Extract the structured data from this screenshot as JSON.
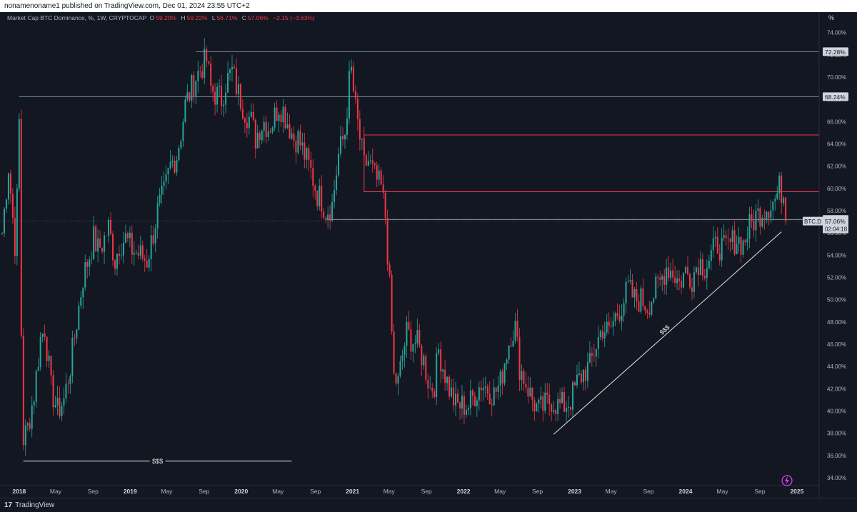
{
  "header": {
    "published_text": "nonamenoname1 published on TradingView.com, Dec 01, 2024 23:55 UTC+2"
  },
  "legend": {
    "symbol_text": "Market Cap BTC Dominance, %, 1W, CRYPTOCAP",
    "open_label": "O",
    "open_value": "59.20%",
    "high_label": "H",
    "high_value": "59.22%",
    "low_label": "L",
    "low_value": "56.71%",
    "close_label": "C",
    "close_value": "57.06%",
    "change_text": "−2.15 (−3.63%)"
  },
  "scale_unit": "%",
  "footer": {
    "logo_mark": "17",
    "brand": "TradingView"
  },
  "colors": {
    "background": "#131722",
    "up": "#26a69a",
    "down": "#f23645",
    "level_line": "#9aa8b4",
    "zone_line": "#f23645",
    "annotation": "#e6e6e6"
  },
  "icons": [
    "tradingview-logo-icon",
    "lightning-icon"
  ],
  "chart_data": {
    "type": "candlestick",
    "timeframe": "1W",
    "ylim": [
      33.3,
      75.0
    ],
    "xlim": [
      "2017-10-30",
      "2025-03-15"
    ],
    "y_ticks": [
      "74.00%",
      "72.00%",
      "70.00%",
      "68.00%",
      "66.00%",
      "64.00%",
      "62.00%",
      "60.00%",
      "58.00%",
      "56.00%",
      "54.00%",
      "52.00%",
      "50.00%",
      "48.00%",
      "46.00%",
      "44.00%",
      "42.00%",
      "40.00%",
      "38.00%",
      "36.00%",
      "34.00%"
    ],
    "x_ticks": [
      {
        "label": "2018",
        "date": "2018-01-01",
        "major": true
      },
      {
        "label": "May",
        "date": "2018-05-01"
      },
      {
        "label": "Sep",
        "date": "2018-09-01"
      },
      {
        "label": "2019",
        "date": "2019-01-01",
        "major": true
      },
      {
        "label": "May",
        "date": "2019-05-01"
      },
      {
        "label": "Sep",
        "date": "2019-09-01"
      },
      {
        "label": "2020",
        "date": "2020-01-01",
        "major": true
      },
      {
        "label": "May",
        "date": "2020-05-01"
      },
      {
        "label": "Sep",
        "date": "2020-09-01"
      },
      {
        "label": "2021",
        "date": "2021-01-01",
        "major": true
      },
      {
        "label": "May",
        "date": "2021-05-01"
      },
      {
        "label": "Sep",
        "date": "2021-09-01"
      },
      {
        "label": "2022",
        "date": "2022-01-01",
        "major": true
      },
      {
        "label": "May",
        "date": "2022-05-01"
      },
      {
        "label": "Sep",
        "date": "2022-09-01"
      },
      {
        "label": "2023",
        "date": "2023-01-01",
        "major": true
      },
      {
        "label": "May",
        "date": "2023-05-01"
      },
      {
        "label": "Sep",
        "date": "2023-09-01"
      },
      {
        "label": "2024",
        "date": "2024-01-01",
        "major": true
      },
      {
        "label": "May",
        "date": "2024-05-01"
      },
      {
        "label": "Sep",
        "date": "2024-09-01"
      },
      {
        "label": "2025",
        "date": "2025-01-01",
        "major": true
      }
    ],
    "price_anchors": [
      [
        "2017-11-06",
        56.0
      ],
      [
        "2017-11-27",
        62.0
      ],
      [
        "2017-12-18",
        55.0
      ],
      [
        "2017-12-25",
        59.0
      ],
      [
        "2018-01-01",
        66.0
      ],
      [
        "2018-01-08",
        47.0
      ],
      [
        "2018-01-15",
        37.5
      ],
      [
        "2018-01-29",
        38.5
      ],
      [
        "2018-02-19",
        41.5
      ],
      [
        "2018-03-12",
        46.5
      ],
      [
        "2018-03-26",
        47.5
      ],
      [
        "2018-04-16",
        42.0
      ],
      [
        "2018-05-07",
        40.0
      ],
      [
        "2018-05-28",
        41.0
      ],
      [
        "2018-06-18",
        44.0
      ],
      [
        "2018-07-09",
        48.0
      ],
      [
        "2018-07-30",
        52.0
      ],
      [
        "2018-08-20",
        54.0
      ],
      [
        "2018-09-03",
        55.5
      ],
      [
        "2018-09-17",
        54.5
      ],
      [
        "2018-10-01",
        55.0
      ],
      [
        "2018-10-22",
        56.5
      ],
      [
        "2018-11-12",
        53.5
      ],
      [
        "2018-11-26",
        55.0
      ],
      [
        "2018-12-17",
        55.5
      ],
      [
        "2019-01-07",
        54.5
      ],
      [
        "2019-02-04",
        54.0
      ],
      [
        "2019-02-25",
        53.5
      ],
      [
        "2019-03-18",
        56.0
      ],
      [
        "2019-04-01",
        58.0
      ],
      [
        "2019-04-22",
        59.5
      ],
      [
        "2019-05-13",
        62.0
      ],
      [
        "2019-06-03",
        63.0
      ],
      [
        "2019-06-17",
        65.0
      ],
      [
        "2019-07-01",
        67.5
      ],
      [
        "2019-07-15",
        68.5
      ],
      [
        "2019-08-05",
        70.0
      ],
      [
        "2019-08-26",
        71.0
      ],
      [
        "2019-09-09",
        71.5
      ],
      [
        "2019-09-23",
        69.0
      ],
      [
        "2019-10-07",
        68.5
      ],
      [
        "2019-10-28",
        68.0
      ],
      [
        "2019-11-11",
        69.5
      ],
      [
        "2019-12-02",
        70.5
      ],
      [
        "2019-12-23",
        68.5
      ],
      [
        "2020-01-13",
        67.0
      ],
      [
        "2020-02-03",
        66.0
      ],
      [
        "2020-02-17",
        64.5
      ],
      [
        "2020-03-02",
        65.5
      ],
      [
        "2020-03-16",
        66.0
      ],
      [
        "2020-03-30",
        65.5
      ],
      [
        "2020-04-13",
        66.0
      ],
      [
        "2020-05-04",
        67.5
      ],
      [
        "2020-05-18",
        67.0
      ],
      [
        "2020-06-08",
        65.5
      ],
      [
        "2020-06-22",
        64.5
      ],
      [
        "2020-07-06",
        64.5
      ],
      [
        "2020-07-27",
        63.0
      ],
      [
        "2020-08-17",
        61.5
      ],
      [
        "2020-09-07",
        59.5
      ],
      [
        "2020-09-21",
        59.0
      ],
      [
        "2020-10-05",
        58.0
      ],
      [
        "2020-10-26",
        58.5
      ],
      [
        "2020-11-16",
        63.0
      ],
      [
        "2020-12-07",
        65.0
      ],
      [
        "2020-12-21",
        69.5
      ],
      [
        "2020-12-28",
        70.5
      ],
      [
        "2021-01-11",
        67.0
      ],
      [
        "2021-01-25",
        64.5
      ],
      [
        "2021-02-08",
        62.0
      ],
      [
        "2021-02-22",
        62.5
      ],
      [
        "2021-03-15",
        61.0
      ],
      [
        "2021-04-05",
        60.0
      ],
      [
        "2021-04-19",
        57.5
      ],
      [
        "2021-05-03",
        51.0
      ],
      [
        "2021-05-17",
        43.0
      ],
      [
        "2021-05-31",
        42.5
      ],
      [
        "2021-06-14",
        45.0
      ],
      [
        "2021-06-28",
        47.0
      ],
      [
        "2021-07-12",
        46.5
      ],
      [
        "2021-08-02",
        46.0
      ],
      [
        "2021-08-23",
        44.5
      ],
      [
        "2021-09-13",
        42.0
      ],
      [
        "2021-09-27",
        42.5
      ],
      [
        "2021-10-11",
        45.5
      ],
      [
        "2021-10-25",
        44.0
      ],
      [
        "2021-11-15",
        42.0
      ],
      [
        "2021-12-06",
        40.5
      ],
      [
        "2021-12-27",
        40.5
      ],
      [
        "2022-01-17",
        40.5
      ],
      [
        "2022-02-07",
        41.5
      ],
      [
        "2022-02-28",
        42.5
      ],
      [
        "2022-03-21",
        42.0
      ],
      [
        "2022-04-11",
        41.5
      ],
      [
        "2022-05-02",
        42.5
      ],
      [
        "2022-05-16",
        44.5
      ],
      [
        "2022-06-06",
        47.0
      ],
      [
        "2022-06-20",
        47.5
      ],
      [
        "2022-07-04",
        44.0
      ],
      [
        "2022-07-25",
        42.5
      ],
      [
        "2022-08-15",
        41.0
      ],
      [
        "2022-09-05",
        40.0
      ],
      [
        "2022-09-26",
        40.5
      ],
      [
        "2022-10-17",
        41.0
      ],
      [
        "2022-11-07",
        40.5
      ],
      [
        "2022-11-28",
        40.5
      ],
      [
        "2022-12-19",
        41.0
      ],
      [
        "2023-01-09",
        42.5
      ],
      [
        "2023-01-30",
        43.5
      ],
      [
        "2023-02-20",
        44.0
      ],
      [
        "2023-03-13",
        46.0
      ],
      [
        "2023-04-03",
        47.5
      ],
      [
        "2023-04-24",
        47.0
      ],
      [
        "2023-05-15",
        48.5
      ],
      [
        "2023-06-05",
        49.5
      ],
      [
        "2023-06-26",
        51.0
      ],
      [
        "2023-07-17",
        50.0
      ],
      [
        "2023-08-07",
        50.0
      ],
      [
        "2023-08-28",
        49.5
      ],
      [
        "2023-09-18",
        50.5
      ],
      [
        "2023-10-09",
        51.5
      ],
      [
        "2023-10-30",
        53.0
      ],
      [
        "2023-11-20",
        52.5
      ],
      [
        "2023-12-11",
        51.5
      ],
      [
        "2024-01-01",
        52.5
      ],
      [
        "2024-01-22",
        52.0
      ],
      [
        "2024-02-12",
        53.5
      ],
      [
        "2024-03-04",
        53.0
      ],
      [
        "2024-03-25",
        54.0
      ],
      [
        "2024-04-15",
        55.0
      ],
      [
        "2024-05-06",
        54.5
      ],
      [
        "2024-05-27",
        55.0
      ],
      [
        "2024-06-17",
        55.5
      ],
      [
        "2024-07-08",
        55.0
      ],
      [
        "2024-07-29",
        56.5
      ],
      [
        "2024-08-19",
        57.5
      ],
      [
        "2024-09-09",
        58.0
      ],
      [
        "2024-09-30",
        58.5
      ],
      [
        "2024-10-21",
        59.0
      ],
      [
        "2024-11-04",
        60.0
      ],
      [
        "2024-11-18",
        59.5
      ],
      [
        "2024-11-25",
        57.06
      ]
    ],
    "last_candle": {
      "date": "2024-11-25",
      "open": 59.2,
      "high": 59.22,
      "low": 56.71,
      "close": 57.06
    },
    "horizontal_levels": [
      {
        "value": 72.28,
        "label": "72.28%",
        "start": "2019-08-05"
      },
      {
        "value": 68.24,
        "label": "68.24%",
        "start": "2018-01-01"
      },
      {
        "value": 57.21,
        "label": "57.21%",
        "start": "2020-10-05"
      }
    ],
    "current_price": {
      "value": 57.06,
      "symbol": "BTC.D",
      "label": "57.06%",
      "countdown": "02:04:18"
    },
    "zones": [
      {
        "top": 64.8,
        "bottom": 59.7,
        "start": "2021-02-08",
        "end": "2024-11-20"
      }
    ],
    "extra_zone_line": {
      "value": 59.7,
      "start": "2021-04-12",
      "end": "2024-11-28"
    },
    "annotations": [
      {
        "type": "horizontal_line",
        "label": "$$$",
        "value": 35.5,
        "start": "2018-01-15",
        "end": "2020-06-15"
      },
      {
        "type": "trend_line",
        "label": "$$$",
        "start": [
          "2022-10-24",
          37.9
        ],
        "end": [
          "2024-11-11",
          56.1
        ]
      }
    ]
  }
}
